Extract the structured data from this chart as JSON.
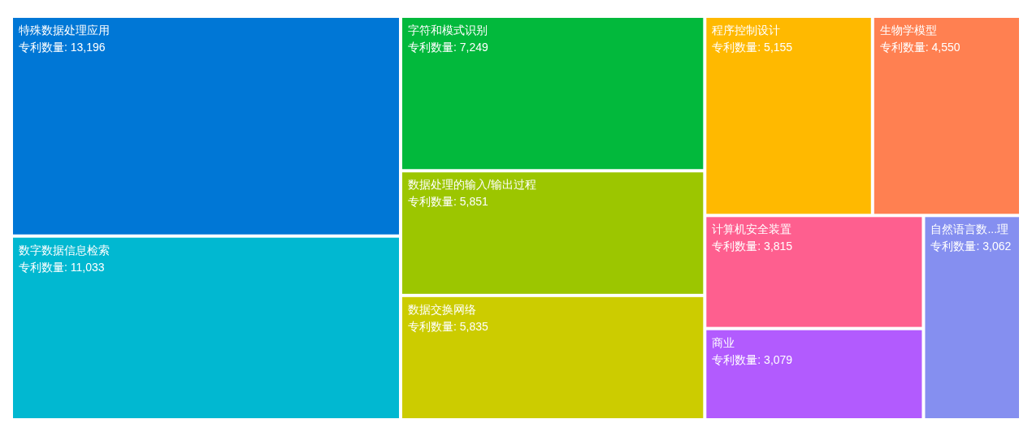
{
  "chart_data": {
    "type": "other",
    "categories": [
      "特殊数据处理应用",
      "数字数据信息检索",
      "字符和模式识别",
      "数据处理的输入/输出过程",
      "数据交换网络",
      "程序控制设计",
      "生物学模型",
      "计算机安全装置",
      "商业",
      "自然语言数...理"
    ],
    "values": [
      13196,
      11033,
      7249,
      5851,
      5835,
      5155,
      4550,
      3815,
      3079,
      3062
    ],
    "value_labels": [
      "专利数量: 13,196",
      "专利数量: 11,033",
      "专利数量: 7,249",
      "专利数量: 5,851",
      "专利数量: 5,835",
      "专利数量: 5,155",
      "专利数量: 4,550",
      "专利数量: 3,815",
      "专利数量: 3,079",
      "专利数量: 3,062"
    ],
    "colors": [
      "#0077d6",
      "#01b8d1",
      "#02b93c",
      "#9cc600",
      "#cccc00",
      "#ffb900",
      "#ff8051",
      "#fe5f8f",
      "#b25bfe",
      "#858ff0"
    ]
  }
}
